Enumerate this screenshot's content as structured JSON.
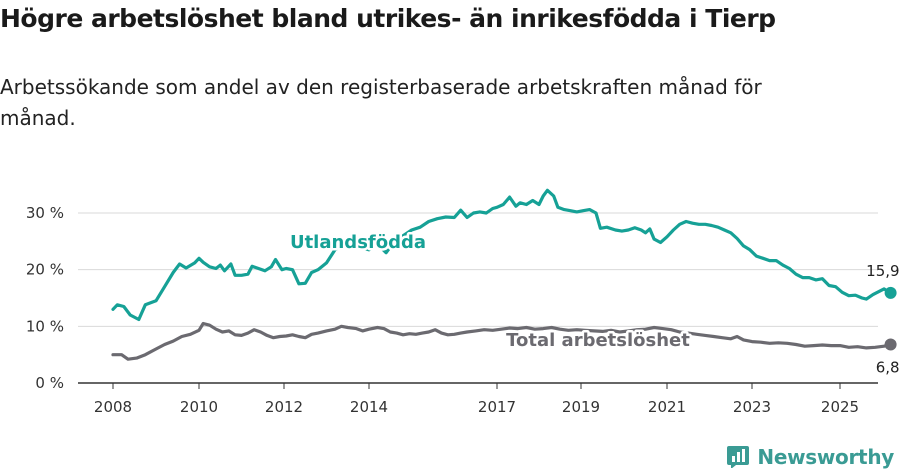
{
  "header": {
    "title": "Högre arbetslöshet bland utrikes- än inrikesfödda i Tierp",
    "subtitle": "Arbetssökande som andel av den registerbaserade arbetskraften månad för månad."
  },
  "brand": {
    "name": "Newsworthy",
    "icon": "newsworthy-logo-icon",
    "color": "#3a9b94"
  },
  "chart_data": {
    "type": "line",
    "ylim": [
      0,
      35
    ],
    "xlim": [
      2007.5,
      2026.0
    ],
    "y_ticks": [
      0,
      10,
      20,
      30
    ],
    "y_tick_labels": [
      "0 %",
      "10 %",
      "20 %",
      "30 %"
    ],
    "x_ticks": [
      2008,
      2010,
      2012,
      2014,
      2017,
      2019,
      2021,
      2023,
      2025
    ],
    "x_tick_labels": [
      "2008",
      "2010",
      "2012",
      "2014",
      "2017",
      "2019",
      "2021",
      "2023",
      "2025"
    ],
    "grid": "horizontal",
    "series": [
      {
        "name": "Utlandsfödda",
        "color": "#16a196",
        "end_label": "15,9 %",
        "points": [
          [
            2008.0,
            13.0
          ],
          [
            2008.1,
            13.8
          ],
          [
            2008.25,
            13.5
          ],
          [
            2008.4,
            12.0
          ],
          [
            2008.6,
            11.2
          ],
          [
            2008.75,
            13.8
          ],
          [
            2009.0,
            14.5
          ],
          [
            2009.2,
            17.0
          ],
          [
            2009.4,
            19.5
          ],
          [
            2009.55,
            21.0
          ],
          [
            2009.7,
            20.3
          ],
          [
            2009.9,
            21.2
          ],
          [
            2010.0,
            22.0
          ],
          [
            2010.1,
            21.3
          ],
          [
            2010.25,
            20.5
          ],
          [
            2010.4,
            20.2
          ],
          [
            2010.5,
            20.8
          ],
          [
            2010.6,
            19.8
          ],
          [
            2010.75,
            21.0
          ],
          [
            2010.85,
            19.0
          ],
          [
            2011.0,
            19.0
          ],
          [
            2011.15,
            19.2
          ],
          [
            2011.25,
            20.6
          ],
          [
            2011.4,
            20.2
          ],
          [
            2011.55,
            19.8
          ],
          [
            2011.7,
            20.5
          ],
          [
            2011.8,
            21.8
          ],
          [
            2011.95,
            20.0
          ],
          [
            2012.05,
            20.2
          ],
          [
            2012.2,
            20.0
          ],
          [
            2012.35,
            17.5
          ],
          [
            2012.5,
            17.6
          ],
          [
            2012.65,
            19.5
          ],
          [
            2012.8,
            20.0
          ],
          [
            2013.0,
            21.2
          ],
          [
            2013.2,
            23.5
          ],
          [
            2013.4,
            24.5
          ],
          [
            2013.6,
            24.8
          ],
          [
            2013.8,
            24.0
          ],
          [
            2014.0,
            23.5
          ],
          [
            2014.2,
            24.5
          ],
          [
            2014.4,
            23.0
          ],
          [
            2014.6,
            25.0
          ],
          [
            2014.8,
            26.0
          ],
          [
            2015.0,
            27.0
          ],
          [
            2015.2,
            27.5
          ],
          [
            2015.4,
            28.5
          ],
          [
            2015.6,
            29.0
          ],
          [
            2015.8,
            29.3
          ],
          [
            2016.0,
            29.2
          ],
          [
            2016.15,
            30.5
          ],
          [
            2016.3,
            29.2
          ],
          [
            2016.45,
            30.0
          ],
          [
            2016.6,
            30.2
          ],
          [
            2016.75,
            30.0
          ],
          [
            2016.9,
            30.8
          ],
          [
            2017.0,
            31.0
          ],
          [
            2017.15,
            31.5
          ],
          [
            2017.3,
            32.8
          ],
          [
            2017.45,
            31.2
          ],
          [
            2017.55,
            31.8
          ],
          [
            2017.7,
            31.5
          ],
          [
            2017.85,
            32.2
          ],
          [
            2018.0,
            31.5
          ],
          [
            2018.1,
            33.0
          ],
          [
            2018.2,
            34.0
          ],
          [
            2018.35,
            33.0
          ],
          [
            2018.45,
            31.0
          ],
          [
            2018.6,
            30.6
          ],
          [
            2018.75,
            30.4
          ],
          [
            2018.9,
            30.2
          ],
          [
            2019.05,
            30.4
          ],
          [
            2019.2,
            30.6
          ],
          [
            2019.35,
            30.0
          ],
          [
            2019.45,
            27.3
          ],
          [
            2019.6,
            27.5
          ],
          [
            2019.8,
            27.0
          ],
          [
            2019.95,
            26.8
          ],
          [
            2020.1,
            27.0
          ],
          [
            2020.25,
            27.4
          ],
          [
            2020.4,
            27.0
          ],
          [
            2020.5,
            26.5
          ],
          [
            2020.6,
            27.2
          ],
          [
            2020.7,
            25.4
          ],
          [
            2020.85,
            24.8
          ],
          [
            2021.0,
            25.8
          ],
          [
            2021.15,
            27.0
          ],
          [
            2021.3,
            28.0
          ],
          [
            2021.45,
            28.5
          ],
          [
            2021.6,
            28.2
          ],
          [
            2021.75,
            28.0
          ],
          [
            2021.9,
            28.0
          ],
          [
            2022.05,
            27.8
          ],
          [
            2022.2,
            27.5
          ],
          [
            2022.35,
            27.0
          ],
          [
            2022.5,
            26.5
          ],
          [
            2022.65,
            25.5
          ],
          [
            2022.8,
            24.2
          ],
          [
            2022.95,
            23.5
          ],
          [
            2023.1,
            22.4
          ],
          [
            2023.25,
            22.0
          ],
          [
            2023.4,
            21.6
          ],
          [
            2023.55,
            21.6
          ],
          [
            2023.7,
            20.8
          ],
          [
            2023.85,
            20.2
          ],
          [
            2024.0,
            19.2
          ],
          [
            2024.15,
            18.6
          ],
          [
            2024.3,
            18.6
          ],
          [
            2024.45,
            18.2
          ],
          [
            2024.6,
            18.4
          ],
          [
            2024.75,
            17.2
          ],
          [
            2024.9,
            17.0
          ],
          [
            2025.05,
            16.0
          ],
          [
            2025.2,
            15.4
          ],
          [
            2025.35,
            15.5
          ],
          [
            2025.5,
            15.0
          ],
          [
            2025.6,
            14.8
          ],
          [
            2025.75,
            15.6
          ],
          [
            2025.9,
            16.2
          ],
          [
            2026.0,
            16.6
          ],
          [
            2026.15,
            15.9
          ]
        ]
      },
      {
        "name": "Total arbetslöshet",
        "color": "#6b6a70",
        "end_label": "6,8 %",
        "points": [
          [
            2008.0,
            5.0
          ],
          [
            2008.2,
            5.0
          ],
          [
            2008.35,
            4.2
          ],
          [
            2008.55,
            4.4
          ],
          [
            2008.75,
            5.0
          ],
          [
            2009.0,
            6.0
          ],
          [
            2009.2,
            6.8
          ],
          [
            2009.4,
            7.4
          ],
          [
            2009.6,
            8.2
          ],
          [
            2009.8,
            8.6
          ],
          [
            2010.0,
            9.3
          ],
          [
            2010.1,
            10.5
          ],
          [
            2010.25,
            10.2
          ],
          [
            2010.4,
            9.5
          ],
          [
            2010.55,
            9.0
          ],
          [
            2010.7,
            9.2
          ],
          [
            2010.85,
            8.5
          ],
          [
            2011.0,
            8.4
          ],
          [
            2011.15,
            8.8
          ],
          [
            2011.3,
            9.4
          ],
          [
            2011.45,
            9.0
          ],
          [
            2011.6,
            8.4
          ],
          [
            2011.75,
            8.0
          ],
          [
            2011.9,
            8.2
          ],
          [
            2012.05,
            8.3
          ],
          [
            2012.2,
            8.5
          ],
          [
            2012.35,
            8.2
          ],
          [
            2012.5,
            8.0
          ],
          [
            2012.65,
            8.6
          ],
          [
            2012.8,
            8.8
          ],
          [
            2013.0,
            9.2
          ],
          [
            2013.2,
            9.5
          ],
          [
            2013.35,
            10.0
          ],
          [
            2013.5,
            9.8
          ],
          [
            2013.7,
            9.6
          ],
          [
            2013.85,
            9.2
          ],
          [
            2014.0,
            9.5
          ],
          [
            2014.2,
            9.8
          ],
          [
            2014.35,
            9.6
          ],
          [
            2014.5,
            9.0
          ],
          [
            2014.65,
            8.8
          ],
          [
            2014.8,
            8.5
          ],
          [
            2014.95,
            8.7
          ],
          [
            2015.1,
            8.6
          ],
          [
            2015.25,
            8.8
          ],
          [
            2015.4,
            9.0
          ],
          [
            2015.55,
            9.4
          ],
          [
            2015.7,
            8.8
          ],
          [
            2015.85,
            8.5
          ],
          [
            2016.0,
            8.6
          ],
          [
            2016.15,
            8.8
          ],
          [
            2016.3,
            9.0
          ],
          [
            2016.5,
            9.2
          ],
          [
            2016.7,
            9.4
          ],
          [
            2016.9,
            9.3
          ],
          [
            2017.1,
            9.5
          ],
          [
            2017.3,
            9.7
          ],
          [
            2017.5,
            9.6
          ],
          [
            2017.7,
            9.8
          ],
          [
            2017.9,
            9.5
          ],
          [
            2018.1,
            9.6
          ],
          [
            2018.3,
            9.8
          ],
          [
            2018.5,
            9.5
          ],
          [
            2018.7,
            9.3
          ],
          [
            2018.9,
            9.4
          ],
          [
            2019.1,
            9.3
          ],
          [
            2019.3,
            9.2
          ],
          [
            2019.5,
            9.1
          ],
          [
            2019.7,
            9.3
          ],
          [
            2019.9,
            9.0
          ],
          [
            2020.1,
            9.2
          ],
          [
            2020.3,
            9.4
          ],
          [
            2020.5,
            9.5
          ],
          [
            2020.7,
            9.8
          ],
          [
            2020.9,
            9.6
          ],
          [
            2021.1,
            9.4
          ],
          [
            2021.3,
            9.0
          ],
          [
            2021.5,
            8.8
          ],
          [
            2021.7,
            8.6
          ],
          [
            2021.9,
            8.4
          ],
          [
            2022.1,
            8.2
          ],
          [
            2022.3,
            8.0
          ],
          [
            2022.5,
            7.8
          ],
          [
            2022.65,
            8.2
          ],
          [
            2022.8,
            7.6
          ],
          [
            2023.0,
            7.3
          ],
          [
            2023.2,
            7.2
          ],
          [
            2023.4,
            7.0
          ],
          [
            2023.6,
            7.1
          ],
          [
            2023.8,
            7.0
          ],
          [
            2024.0,
            6.8
          ],
          [
            2024.2,
            6.5
          ],
          [
            2024.4,
            6.6
          ],
          [
            2024.6,
            6.7
          ],
          [
            2024.8,
            6.6
          ],
          [
            2025.0,
            6.6
          ],
          [
            2025.2,
            6.3
          ],
          [
            2025.4,
            6.4
          ],
          [
            2025.6,
            6.2
          ],
          [
            2025.8,
            6.3
          ],
          [
            2026.0,
            6.5
          ],
          [
            2026.15,
            6.8
          ]
        ]
      }
    ]
  }
}
